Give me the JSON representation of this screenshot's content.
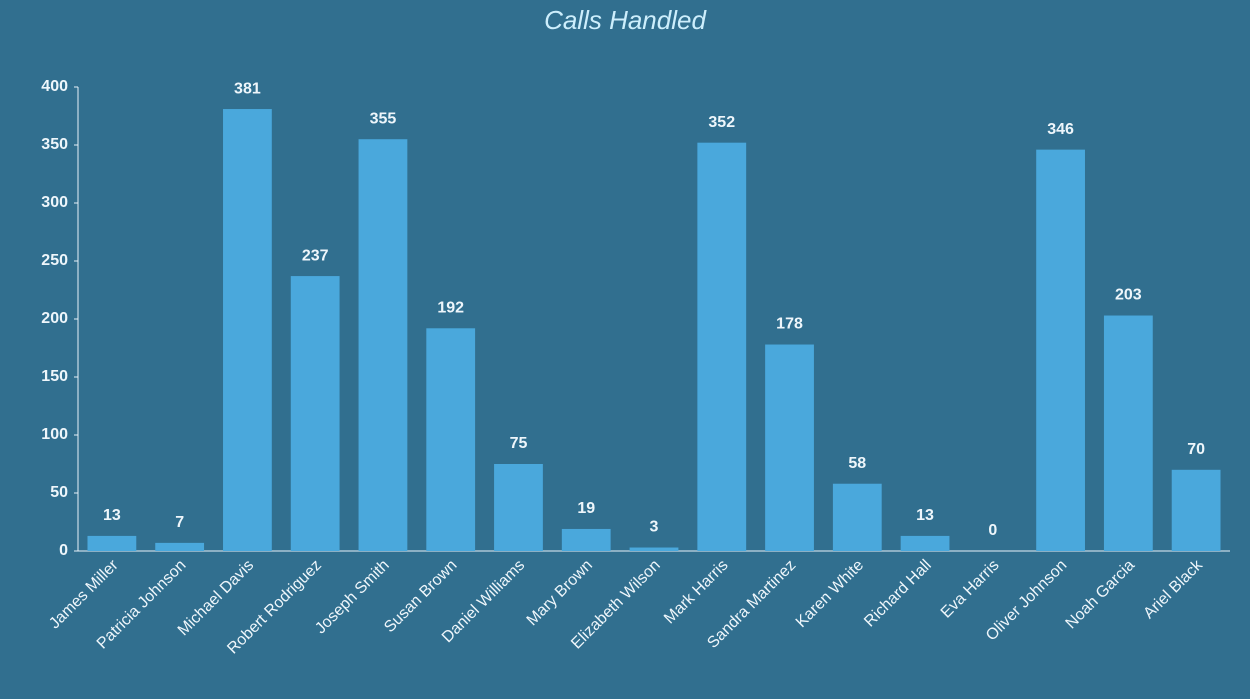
{
  "chart_data": {
    "type": "bar",
    "title": "Calls Handled",
    "categories": [
      "James Miller",
      "Patricia Johnson",
      "Michael Davis",
      "Robert Rodriguez",
      "Joseph Smith",
      "Susan Brown",
      "Daniel Williams",
      "Mary Brown",
      "Elizabeth Wilson",
      "Mark Harris",
      "Sandra Martinez",
      "Karen White",
      "Richard Hall",
      "Eva Harris",
      "Oliver Johnson",
      "Noah Garcia",
      "Ariel Black"
    ],
    "values": [
      13,
      7,
      381,
      237,
      355,
      192,
      75,
      19,
      3,
      352,
      178,
      58,
      13,
      0,
      346,
      203,
      70
    ],
    "color": "#4aa8dc",
    "ylim": [
      0,
      400
    ],
    "yticks": [
      0,
      50,
      100,
      150,
      200,
      250,
      300,
      350,
      400
    ],
    "grid": false
  }
}
